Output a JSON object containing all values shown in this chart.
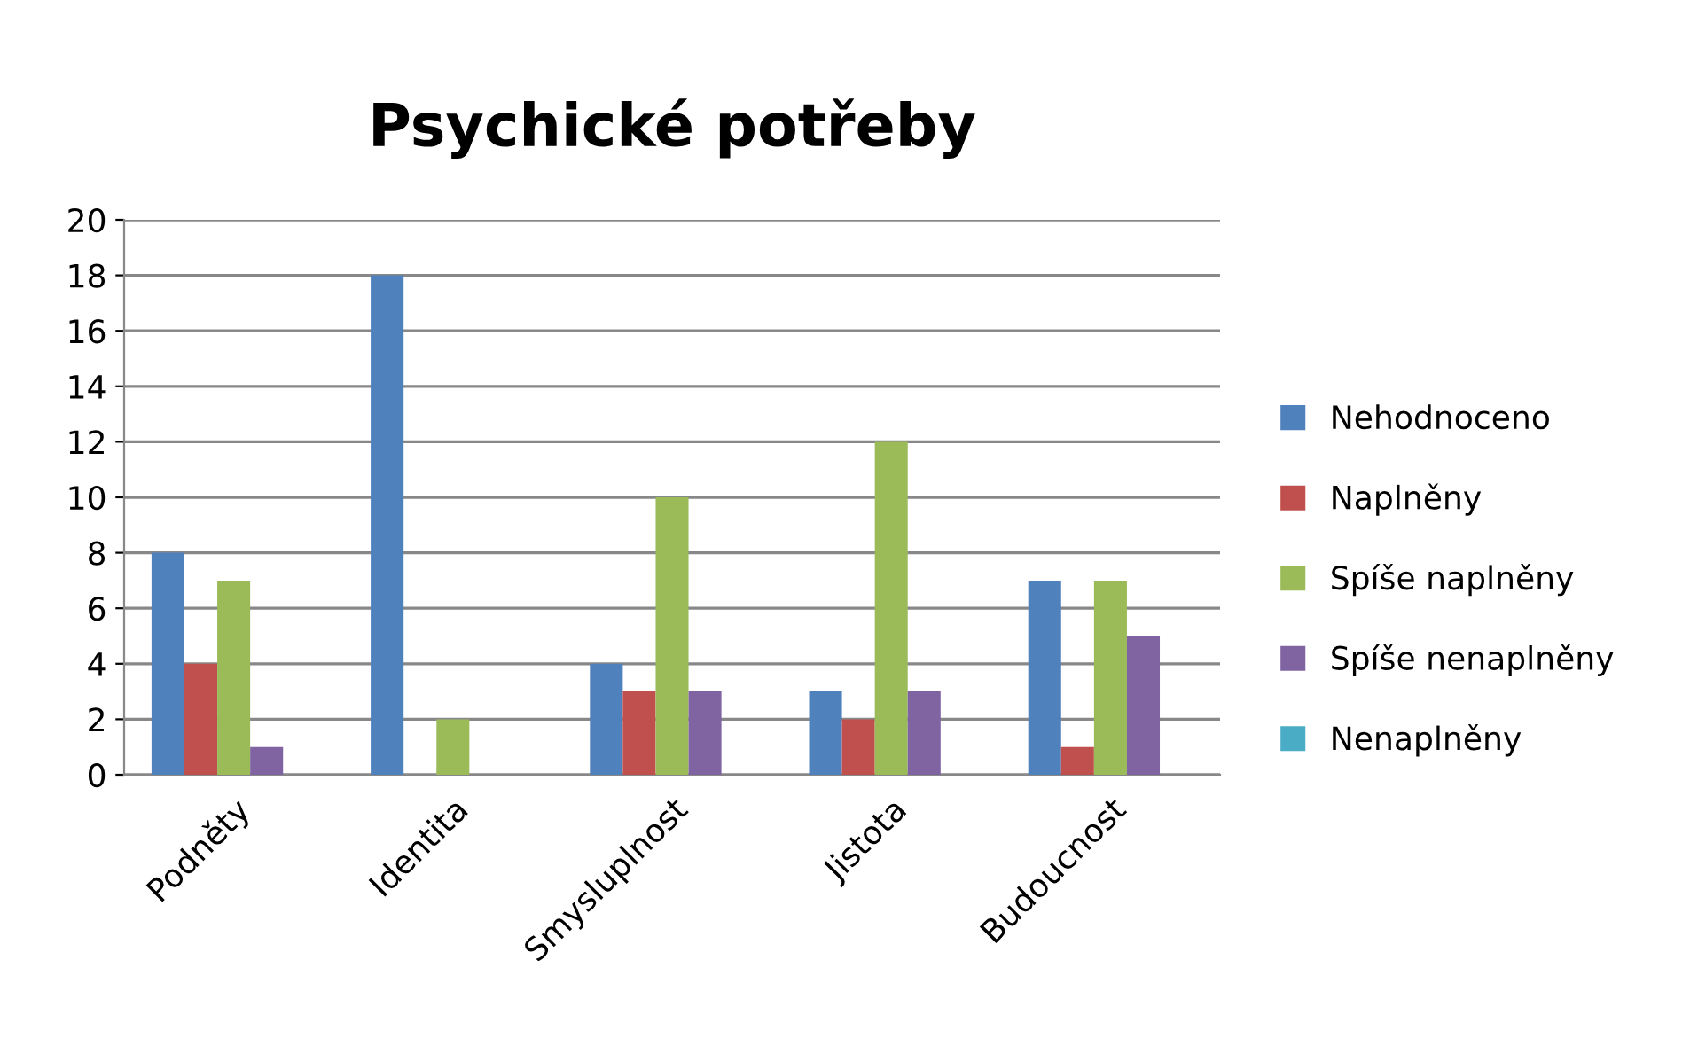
{
  "chart_data": {
    "type": "bar",
    "title": "Psychické potřeby",
    "categories": [
      "Podněty",
      "Identita",
      "Smysluplnost",
      "Jistota",
      "Budoucnost"
    ],
    "series": [
      {
        "name": "Nehodnoceno",
        "color": "#4f81bd",
        "values": [
          8,
          18,
          4,
          3,
          7
        ]
      },
      {
        "name": "Naplněny",
        "color": "#c0504d",
        "values": [
          4,
          0,
          3,
          2,
          1
        ]
      },
      {
        "name": "Spíše naplněny",
        "color": "#9bbb59",
        "values": [
          7,
          2,
          10,
          12,
          7
        ]
      },
      {
        "name": "Spíše nenaplněny",
        "color": "#8064a2",
        "values": [
          1,
          0,
          3,
          3,
          5
        ]
      },
      {
        "name": "Nenaplněny",
        "color": "#4bacc6",
        "values": [
          0,
          0,
          0,
          0,
          0
        ]
      }
    ],
    "ylim": [
      0,
      20
    ],
    "yticks": [
      0,
      2,
      4,
      6,
      8,
      10,
      12,
      14,
      16,
      18,
      20
    ],
    "grid": "y",
    "legend": "right"
  }
}
